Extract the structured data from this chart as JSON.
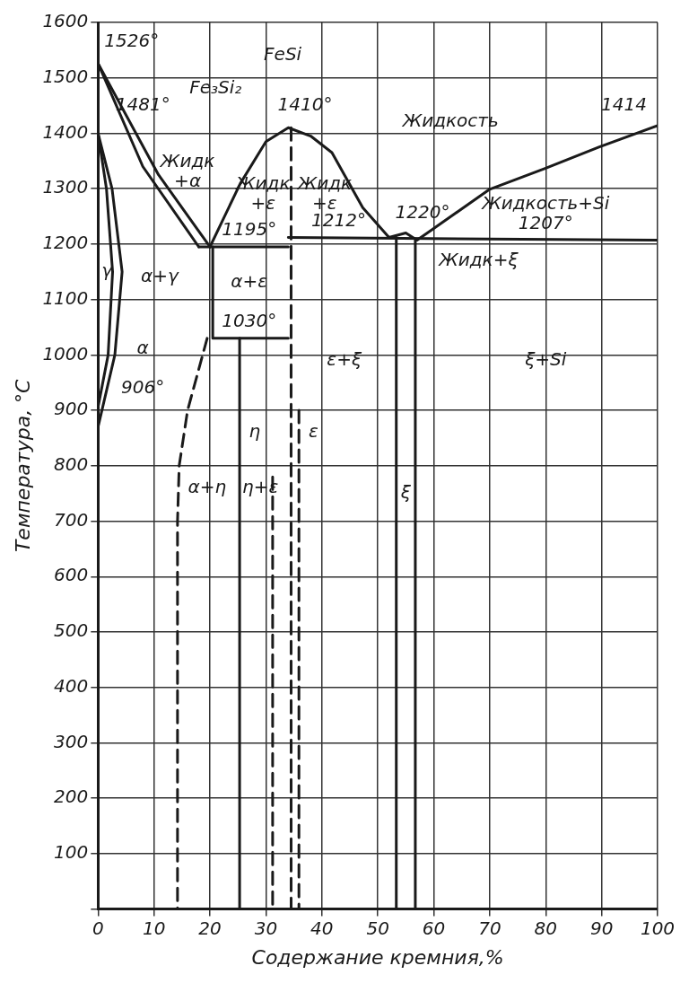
{
  "chart_data": {
    "type": "line",
    "xlabel": "Содержание кремния,%",
    "ylabel": "Температура, °С",
    "xlim": [
      0,
      100
    ],
    "xticks": [
      0,
      10,
      20,
      30,
      40,
      50,
      60,
      70,
      80,
      90,
      100
    ],
    "ylim": [
      0,
      1600
    ],
    "yticks": [
      {
        "value": 0,
        "label": null
      },
      100,
      200,
      300,
      400,
      500,
      600,
      700,
      800,
      900,
      1000,
      1100,
      1200,
      1300,
      1400,
      1500,
      1600
    ],
    "grid": true,
    "legend": false,
    "marker": "none",
    "series": [
      {
        "color": "#1a1a1a",
        "x": [
          0,
          10.8,
          20
        ],
        "values": [
          1526,
          1325,
          1195
        ]
      },
      {
        "color": "#1a1a1a",
        "x": [
          0,
          8,
          18
        ],
        "values": [
          1526,
          1340,
          1195
        ]
      },
      {
        "color": "#1a1a1a",
        "x": [
          0,
          2.5,
          4.3,
          3,
          0
        ],
        "values": [
          1400,
          1300,
          1150,
          1000,
          870
        ]
      },
      {
        "color": "#1a1a1a",
        "x": [
          0,
          1.5,
          2.6,
          1.8,
          0
        ],
        "values": [
          1400,
          1300,
          1150,
          1000,
          906
        ]
      },
      {
        "color": "#1a1a1a",
        "x": [
          20,
          25.4,
          30,
          34,
          38,
          41.8,
          47.3,
          52,
          55,
          57,
          70,
          80,
          89.5,
          100
        ],
        "values": [
          1195,
          1309,
          1385,
          1410,
          1395,
          1365,
          1266,
          1212,
          1220,
          1207,
          1299,
          1337,
          1375,
          1414
        ]
      },
      {
        "color": "#1a1a1a",
        "x": [
          18,
          34
        ],
        "values": [
          1195,
          1195
        ]
      },
      {
        "color": "#1a1a1a",
        "x": [
          20.5,
          20.5,
          34
        ],
        "values": [
          1195,
          1030,
          1030
        ]
      },
      {
        "color": "#1a1a1a",
        "x": [
          34,
          100
        ],
        "values": [
          1212,
          1207
        ]
      },
      {
        "color": "#1a1a1a",
        "x": [
          53.3,
          53.3
        ],
        "values": [
          1212,
          0
        ]
      },
      {
        "color": "#1a1a1a",
        "x": [
          56.7,
          56.7
        ],
        "values": [
          1207,
          0
        ]
      },
      {
        "color": "#1a1a1a",
        "x": [
          25.3,
          25.3
        ],
        "values": [
          1030,
          0
        ]
      },
      {
        "color": "#1a1a1a",
        "line_style": "dashed",
        "x": [
          19.5,
          16,
          14.5,
          14.2,
          14.2
        ],
        "values": [
          1030,
          900,
          800,
          700,
          0
        ]
      },
      {
        "color": "#1a1a1a",
        "line_style": "dashed",
        "x": [
          34.5,
          34.5
        ],
        "values": [
          1410,
          0
        ]
      },
      {
        "color": "#1a1a1a",
        "line_style": "dashed",
        "x": [
          35.9,
          35.9
        ],
        "values": [
          900,
          0
        ]
      },
      {
        "color": "#1a1a1a",
        "line_style": "dashed",
        "x": [
          31.2,
          31.2
        ],
        "values": [
          780,
          0
        ]
      }
    ],
    "annotations": [
      "1526°",
      "1481°",
      "Fe₃Si₂",
      "FeSi",
      "1410°",
      "Жидкость",
      "1414",
      "Жидк\n+α",
      "Жидк\n+ε",
      "Жидк\n+ε",
      "1195°",
      "1212°",
      "1220°",
      "Жидкость+Si",
      "1207°",
      "Жидк+ξ",
      "γ",
      "α+γ",
      "α+ε",
      "1030°",
      "α",
      "906°",
      "ε+ξ",
      "ξ+Si",
      "η",
      "ε",
      "α+η",
      "η+ε",
      "ξ"
    ]
  }
}
